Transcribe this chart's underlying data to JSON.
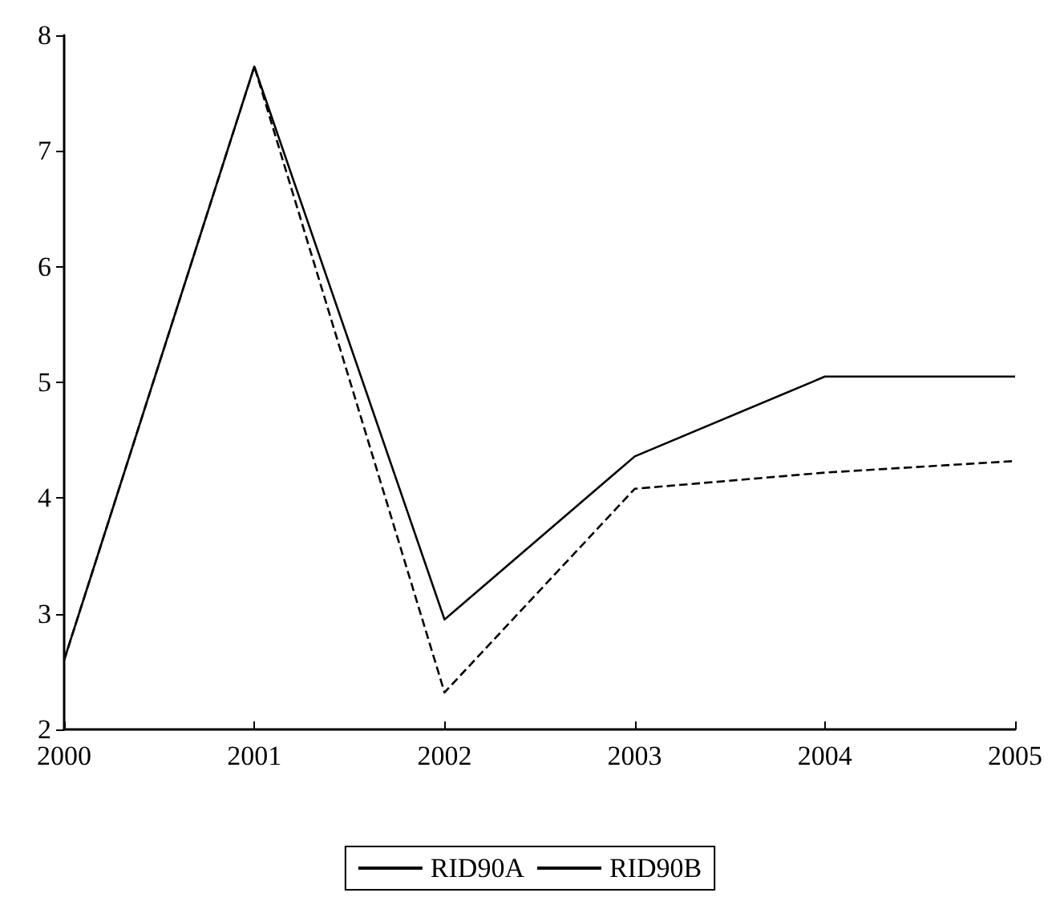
{
  "chart_data": {
    "type": "line",
    "categories": [
      "2000",
      "2001",
      "2002",
      "2003",
      "2004",
      "2005"
    ],
    "series": [
      {
        "name": "RID90A",
        "color": "#000000",
        "line_style": "solid",
        "values": [
          2.6,
          7.73,
          2.95,
          4.36,
          5.05,
          5.05
        ]
      },
      {
        "name": "RID90B",
        "color": "#000000",
        "line_style": "dashed",
        "values": [
          2.6,
          7.73,
          2.32,
          4.08,
          4.22,
          4.32
        ]
      }
    ],
    "ylim": [
      2,
      8
    ],
    "yticks": [
      2,
      3,
      4,
      5,
      6,
      7,
      8
    ],
    "grid": false,
    "legend": "bottom",
    "marker": "none"
  }
}
